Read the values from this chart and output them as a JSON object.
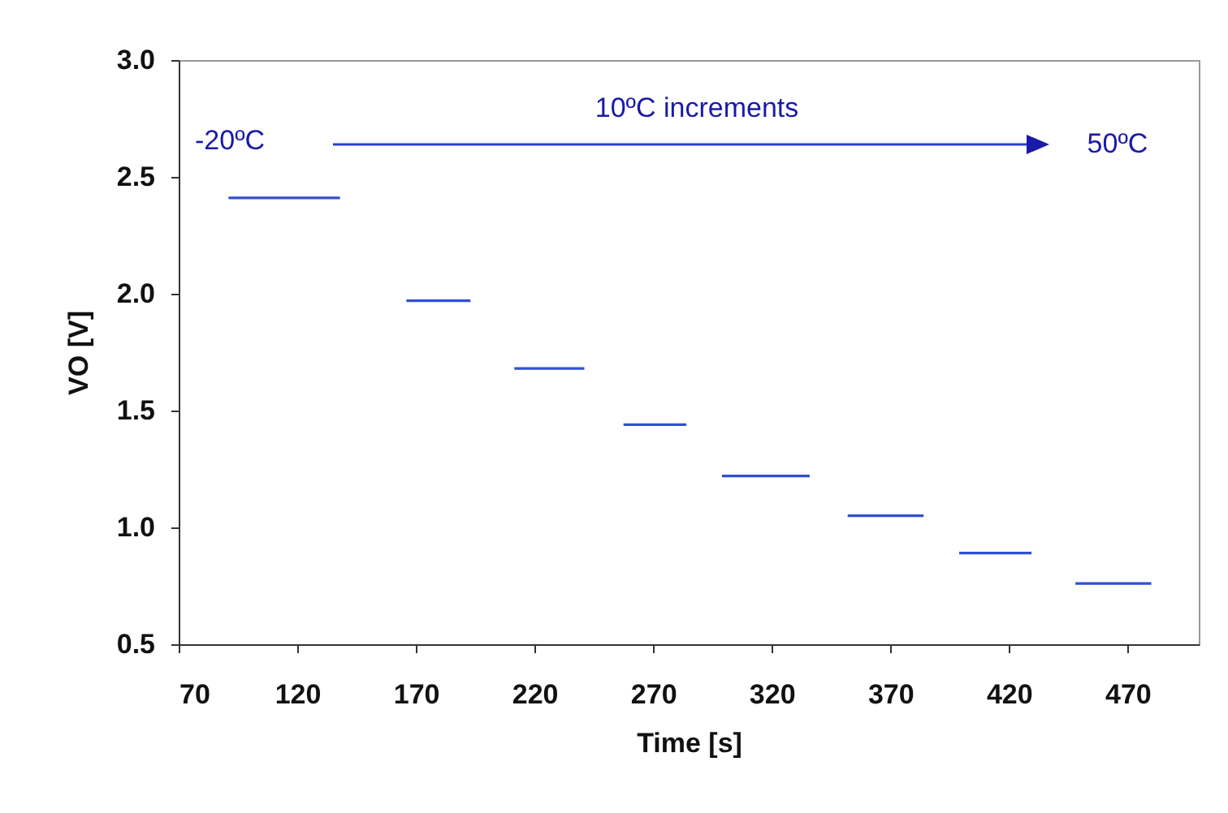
{
  "chart_data": {
    "type": "line",
    "xlabel": "Time [s]",
    "ylabel": "VO [V]",
    "x": [
      91,
      138,
      null,
      166,
      193,
      null,
      211.5,
      241,
      null,
      257.5,
      284,
      null,
      299,
      336,
      null,
      352,
      384,
      null,
      399,
      429.5,
      null,
      448,
      480
    ],
    "series": [
      {
        "color": "#3050d0",
        "values": [
          2.41,
          2.41,
          null,
          1.97,
          1.97,
          null,
          1.68,
          1.68,
          null,
          1.44,
          1.44,
          null,
          1.22,
          1.22,
          null,
          1.05,
          1.05,
          null,
          0.89,
          0.89,
          null,
          0.76,
          0.76
        ]
      }
    ],
    "xlim": [
      70,
      500
    ],
    "xticks": [
      70,
      120,
      170,
      220,
      270,
      320,
      370,
      420,
      470
    ],
    "ylim": [
      0.5,
      3.0
    ],
    "yticks": [
      0.5,
      {
        "value": 1,
        "label": "1.0"
      },
      1.5,
      {
        "value": 2,
        "label": "2.0"
      },
      2.5,
      {
        "value": 3,
        "label": "3.0"
      }
    ],
    "annotations": [
      "-20ºC",
      "10ºC increments",
      "50ºC"
    ],
    "grid": false,
    "legend": false,
    "marker": "none",
    "line_style": "solid"
  }
}
